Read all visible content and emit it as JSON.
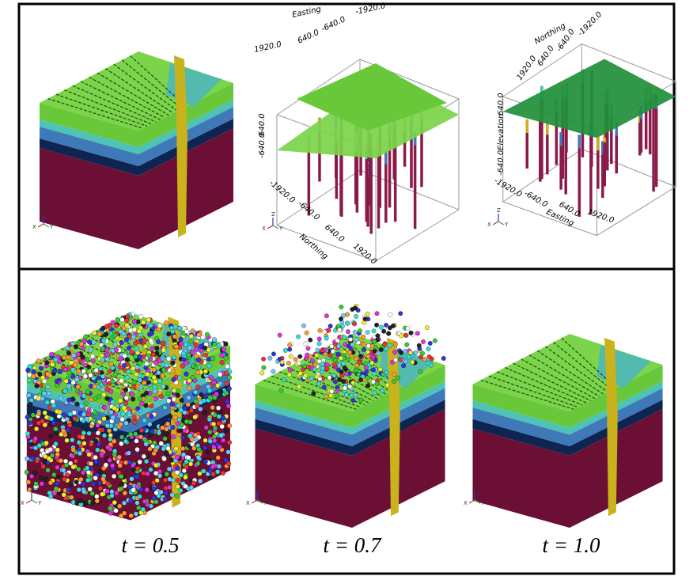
{
  "top_panel": {
    "view_2": {
      "x_label": "Easting",
      "x_ticks": [
        "1920.0",
        "640.0",
        "-640.0",
        "-1920.0"
      ],
      "z_ticks": [
        "640.0",
        "-640.0"
      ],
      "y_ticks": [
        "-1920.0",
        "-640.0",
        "640.0",
        "1920.0"
      ],
      "y_label": "Northing"
    },
    "view_3": {
      "y_label": "Northing",
      "y_ticks": [
        "1920.0",
        "640.0",
        "-640.0",
        "-1920.0"
      ],
      "z_label": "Elevation",
      "z_ticks": [
        "640.0",
        "-640.0"
      ],
      "x_ticks": [
        "-1920.0",
        "-640.0",
        "640.0",
        "1920.0"
      ],
      "x_label": "Easting"
    }
  },
  "axes_triad": {
    "x": "X",
    "y": "Y",
    "z": "Z"
  },
  "bottom_panel": {
    "captions": [
      "t = 0.5",
      "t = 0.7",
      "t = 1.0"
    ]
  }
}
